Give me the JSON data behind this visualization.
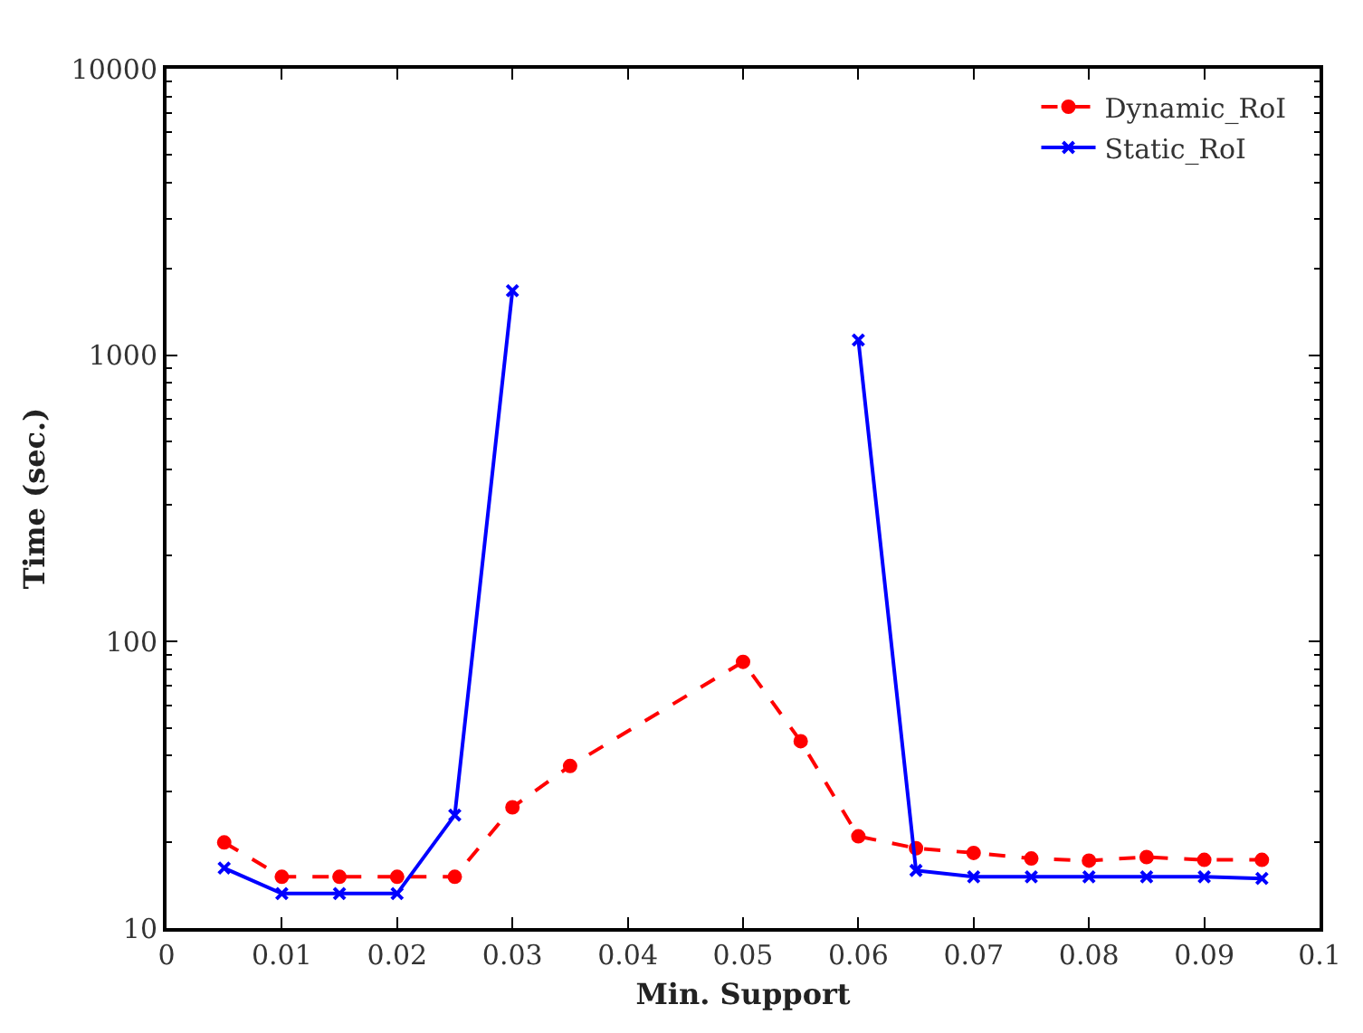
{
  "chart_data": {
    "type": "line",
    "xlabel": "Min. Support",
    "ylabel": "Time (sec.)",
    "x": [
      0.005,
      0.01,
      0.015,
      0.02,
      0.025,
      0.03,
      0.035,
      0.05,
      0.055,
      0.06,
      0.065,
      0.07,
      0.075,
      0.08,
      0.085,
      0.09,
      0.095
    ],
    "series": [
      {
        "name": "Dynamic_RoI",
        "color": "#ff0000",
        "line_style": "dashed",
        "marker": "circle",
        "values": [
          19.9,
          15.1,
          15.1,
          15.1,
          15.1,
          26.4,
          36.8,
          85,
          44.9,
          20.9,
          19.0,
          18.3,
          17.5,
          17.2,
          17.7,
          17.3,
          17.3
        ]
      },
      {
        "name": "Static_RoI",
        "color": "#0000ff",
        "line_style": "solid",
        "marker": "cross",
        "values": [
          16.2,
          13.2,
          13.2,
          13.2,
          24.8,
          1680,
          null,
          null,
          null,
          1130,
          15.9,
          15.1,
          15.1,
          15.1,
          15.1,
          15.1,
          14.9
        ]
      }
    ],
    "log": true,
    "xlim": [
      0,
      0.1
    ],
    "xticks": [
      0,
      0.01,
      0.02,
      0.03,
      0.04,
      0.05,
      0.06,
      0.07,
      0.08,
      0.09,
      0.1
    ],
    "ylim": [
      10,
      10000
    ],
    "yticks": [
      10,
      100,
      1000,
      10000
    ],
    "grid": false,
    "legend": "top right"
  }
}
